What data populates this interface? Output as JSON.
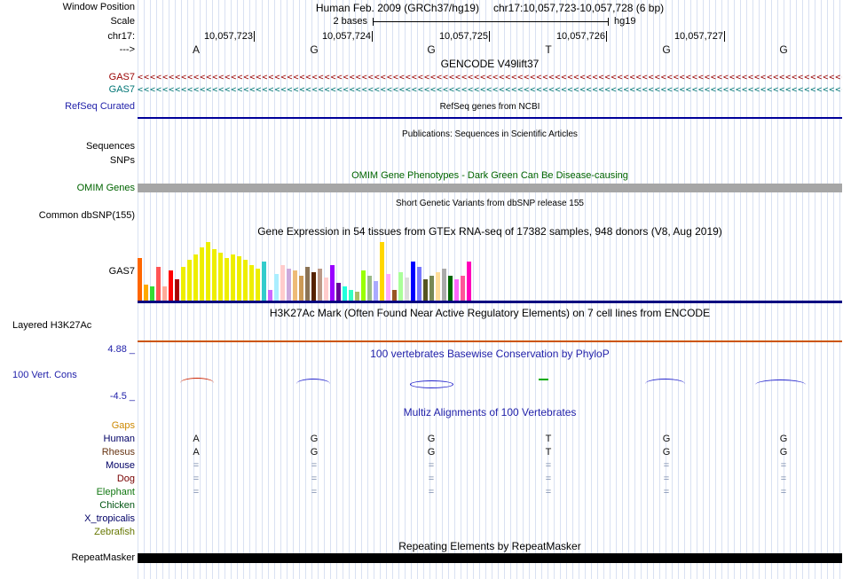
{
  "header": {
    "window_position_label": "Window Position",
    "assembly": "Human Feb. 2009 (GRCh37/hg19)",
    "position": "chr17:10,057,723-10,057,728 (6 bp)",
    "scale_label": "Scale",
    "scale_value": "2 bases",
    "assembly_tag": "hg19",
    "chrom_label": "chr17:",
    "strand_label": "--->",
    "coordinates": [
      "10,057,723",
      "10,057,724",
      "10,057,725",
      "10,057,726",
      "10,057,727"
    ],
    "bases": [
      "A",
      "G",
      "G",
      "T",
      "G",
      "G"
    ]
  },
  "tracks": {
    "gencode": {
      "title": "GENCODE V49lift37",
      "genes": [
        {
          "label": "GAS7",
          "color": "#990000"
        },
        {
          "label": "GAS7",
          "color": "#007575"
        }
      ],
      "arrows": "<<<<<<<<<<<<<<<<<<<<<<<<<<<<<<<<<<<<<<<<<<<<<<<<<<<<<<<<<<<<<<<<<<<<<<<<<<<<<<<<<<<<<<<<<<<<<<<<<<<<<<<<<<<<<<<<<<<<"
    },
    "refseq": {
      "label": "RefSeq Curated",
      "title": "RefSeq genes from NCBI"
    },
    "publications": {
      "title": "Publications: Sequences in Scientific Articles",
      "sub_labels": [
        "Sequences",
        "SNPs"
      ]
    },
    "omim": {
      "label": "OMIM Genes",
      "title": "OMIM Gene Phenotypes - Dark Green Can Be Disease-causing"
    },
    "dbsnp": {
      "label": "Common dbSNP(155)",
      "title": "Short Genetic Variants from dbSNP release 155"
    },
    "gtex": {
      "label": "GAS7",
      "title": "Gene Expression in 54 tissues from GTEx RNA-seq of 17382 samples, 948 donors (V8, Aug 2019)"
    },
    "h3k27ac": {
      "label": "Layered H3K27Ac",
      "title": "H3K27Ac Mark (Often Found Near Active Regulatory Elements) on 7 cell lines from ENCODE"
    },
    "conservation": {
      "label": "100 Vert. Cons",
      "title": "100 vertebrates Basewise Conservation by PhyloP",
      "max_label": "4.88 _",
      "min_label": "-4.5 _"
    },
    "multiz": {
      "title": "Multiz Alignments of 100 Vertebrates",
      "species": [
        {
          "name": "Gaps",
          "color": "#cc8800",
          "cells": [
            "",
            "",
            "",
            "",
            "",
            ""
          ]
        },
        {
          "name": "Human",
          "color": "#000066",
          "cells": [
            "A",
            "G",
            "G",
            "T",
            "G",
            "G"
          ]
        },
        {
          "name": "Rhesus",
          "color": "#663311",
          "cells": [
            "A",
            "G",
            "G",
            "T",
            "G",
            "G"
          ]
        },
        {
          "name": "Mouse",
          "color": "#000066",
          "cells": [
            "=",
            "=",
            "=",
            "=",
            "=",
            "="
          ]
        },
        {
          "name": "Dog",
          "color": "#770000",
          "cells": [
            "=",
            "=",
            "=",
            "=",
            "=",
            "="
          ]
        },
        {
          "name": "Elephant",
          "color": "#117711",
          "cells": [
            "=",
            "=",
            "=",
            "=",
            "=",
            "="
          ]
        },
        {
          "name": "Chicken",
          "color": "#005511",
          "cells": [
            "",
            "",
            "",
            "",
            "",
            ""
          ]
        },
        {
          "name": "X_tropicalis",
          "color": "#000066",
          "cells": [
            "",
            "",
            "",
            "",
            "",
            ""
          ]
        },
        {
          "name": "Zebrafish",
          "color": "#667700",
          "cells": [
            "",
            "",
            "",
            "",
            "",
            ""
          ]
        }
      ]
    },
    "repeatmasker": {
      "label": "RepeatMasker",
      "title": "Repeating Elements by RepeatMasker"
    }
  },
  "colors": {
    "track_link_blue": "#2222aa",
    "omim_green": "#006400",
    "gencode_gene1": "#990000",
    "gencode_gene2": "#007575",
    "refseq_line": "#000099",
    "gtex_baseline": "#000080",
    "h3k27ac_line": "#cc5500",
    "repeatmasker_bar": "#000000",
    "grid_line": "#d9e1f2"
  },
  "chart_data": {
    "type": "bar",
    "title": "Gene Expression in 54 tissues from GTEx RNA-seq of 17382 samples, 948 donors (V8, Aug 2019)",
    "gene": "GAS7",
    "units": "relative expression (pixel height, tissue labels not shown in image)",
    "bar_colors": [
      "#FF6600",
      "#FFAA00",
      "#33DD33",
      "#FF5555",
      "#FFAA99",
      "#FF0000",
      "#AA0000",
      "#EEEE00",
      "#EEEE00",
      "#EEEE00",
      "#EEEE00",
      "#EEEE00",
      "#EEEE00",
      "#EEEE00",
      "#EEEE00",
      "#EEEE00",
      "#EEEE00",
      "#EEEE00",
      "#EEEE00",
      "#EEEE00",
      "#33CCCC",
      "#CC66FF",
      "#AAEEFF",
      "#FFCCCC",
      "#CCAADD",
      "#EEBB77",
      "#CC9955",
      "#8B7355",
      "#552200",
      "#BB9988",
      "#FFCCCC",
      "#9900FF",
      "#660099",
      "#22FFDD",
      "#33FFC2",
      "#AABB66",
      "#99FF00",
      "#99BB88",
      "#AAAAFF",
      "#FFD700",
      "#FFAAFF",
      "#995522",
      "#AAFF99",
      "#DDDDDD",
      "#0000FF",
      "#7777FF",
      "#555522",
      "#778855",
      "#FFDD99",
      "#AAAAAA",
      "#006600",
      "#FF66FF",
      "#FF5599",
      "#FF00BB"
    ],
    "values": [
      48,
      18,
      16,
      38,
      16,
      34,
      24,
      38,
      46,
      52,
      60,
      66,
      58,
      54,
      48,
      52,
      50,
      46,
      40,
      36,
      44,
      12,
      30,
      40,
      36,
      34,
      28,
      38,
      32,
      36,
      26,
      40,
      20,
      16,
      12,
      10,
      34,
      28,
      22,
      66,
      30,
      12,
      32,
      26,
      44,
      38,
      24,
      28,
      32,
      36,
      28,
      24,
      28,
      44
    ]
  }
}
